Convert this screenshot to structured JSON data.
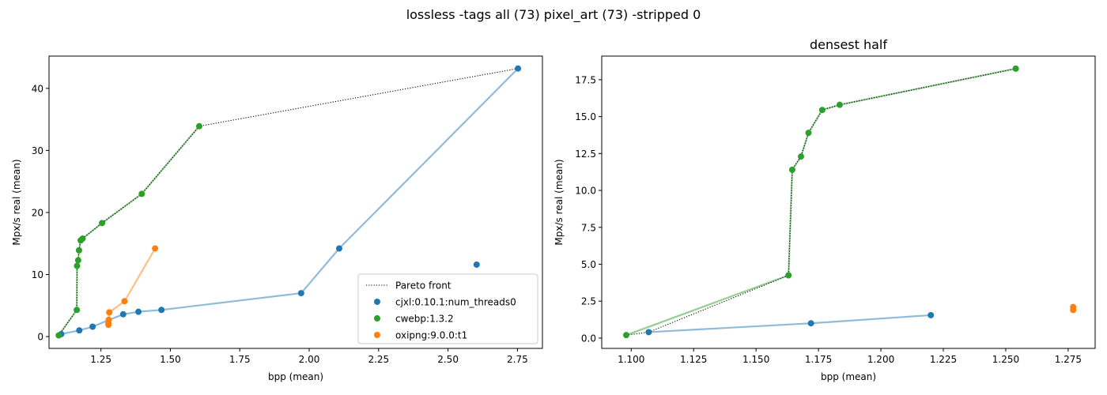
{
  "figure": {
    "suptitle": "lossless -tags all (73) pixel_art (73) -stripped 0"
  },
  "colors": {
    "cjxl": "#1f77b4",
    "cwebp": "#2ca02c",
    "oxipng": "#ff7f0e",
    "pareto": "#000000"
  },
  "chart_data": [
    {
      "type": "scatter",
      "title": "",
      "xlabel": "bpp (mean)",
      "ylabel": "Mpx/s real (mean)",
      "xlim": [
        1.063,
        2.84
      ],
      "ylim": [
        -1.9,
        45.2
      ],
      "xticks": [
        1.25,
        1.5,
        1.75,
        2.0,
        2.25,
        2.5,
        2.75
      ],
      "xtick_labels": [
        "1.25",
        "1.50",
        "1.75",
        "2.00",
        "2.25",
        "2.50",
        "2.75"
      ],
      "yticks": [
        0,
        10,
        20,
        30,
        40
      ],
      "ytick_labels": [
        "0",
        "10",
        "20",
        "30",
        "40"
      ],
      "legend": {
        "position": "lower-right",
        "entries": [
          {
            "label": "Pareto front",
            "kind": "line",
            "color_key": "pareto"
          },
          {
            "label": "cjxl:0.10.1:num_threads0",
            "kind": "dot",
            "color_key": "cjxl"
          },
          {
            "label": "cwebp:1.3.2",
            "kind": "dot",
            "color_key": "cwebp"
          },
          {
            "label": "oxipng:9.0.0:t1",
            "kind": "dot",
            "color_key": "oxipng"
          }
        ]
      },
      "series": [
        {
          "name": "cjxl:0.10.1:num_threads0",
          "color_key": "cjxl",
          "points": [
            [
              1.107,
              0.4
            ],
            [
              1.172,
              1.0
            ],
            [
              1.22,
              1.6
            ],
            [
              1.33,
              3.6
            ],
            [
              1.385,
              4.0
            ],
            [
              1.468,
              4.3
            ],
            [
              1.971,
              7.0
            ],
            [
              2.108,
              14.2
            ],
            [
              2.752,
              43.2
            ],
            [
              2.603,
              11.6
            ]
          ],
          "line": [
            [
              1.107,
              0.4
            ],
            [
              1.172,
              1.0
            ],
            [
              1.22,
              1.6
            ],
            [
              1.33,
              3.6
            ],
            [
              1.385,
              4.0
            ],
            [
              1.468,
              4.3
            ],
            [
              1.971,
              7.0
            ],
            [
              2.108,
              14.2
            ],
            [
              2.752,
              43.2
            ]
          ]
        },
        {
          "name": "cwebp:1.3.2",
          "color_key": "cwebp",
          "points": [
            [
              1.098,
              0.2
            ],
            [
              1.163,
              4.3
            ],
            [
              1.164,
              11.4
            ],
            [
              1.168,
              12.3
            ],
            [
              1.171,
              13.9
            ],
            [
              1.177,
              15.5
            ],
            [
              1.184,
              15.8
            ],
            [
              1.254,
              18.3
            ],
            [
              1.397,
              23.0
            ],
            [
              1.604,
              33.9
            ]
          ],
          "line": [
            [
              1.098,
              0.2
            ],
            [
              1.163,
              4.3
            ],
            [
              1.164,
              11.4
            ],
            [
              1.168,
              12.3
            ],
            [
              1.171,
              13.9
            ],
            [
              1.177,
              15.5
            ],
            [
              1.184,
              15.8
            ],
            [
              1.254,
              18.3
            ],
            [
              1.397,
              23.0
            ],
            [
              1.604,
              33.9
            ]
          ]
        },
        {
          "name": "oxipng:9.0.0:t1",
          "color_key": "oxipng",
          "points": [
            [
              1.277,
              1.9
            ],
            [
              1.277,
              2.1
            ],
            [
              1.278,
              2.7
            ],
            [
              1.28,
              3.9
            ],
            [
              1.335,
              5.7
            ],
            [
              1.445,
              14.2
            ]
          ],
          "line": [
            [
              1.277,
              1.9
            ],
            [
              1.278,
              2.7
            ],
            [
              1.28,
              3.9
            ],
            [
              1.335,
              5.7
            ],
            [
              1.445,
              14.2
            ]
          ]
        }
      ],
      "pareto": [
        [
          1.098,
          0.2
        ],
        [
          1.163,
          4.3
        ],
        [
          1.164,
          11.4
        ],
        [
          1.168,
          12.3
        ],
        [
          1.171,
          13.9
        ],
        [
          1.177,
          15.5
        ],
        [
          1.184,
          15.8
        ],
        [
          1.254,
          18.3
        ],
        [
          1.397,
          23.0
        ],
        [
          1.604,
          33.9
        ],
        [
          2.752,
          43.2
        ]
      ]
    },
    {
      "type": "scatter",
      "title": "densest half",
      "xlabel": "bpp (mean)",
      "ylabel": "Mpx/s real (mean)",
      "xlim": [
        1.0882,
        1.2858
      ],
      "ylim": [
        -0.7,
        19.1
      ],
      "xticks": [
        1.1,
        1.125,
        1.15,
        1.175,
        1.2,
        1.225,
        1.25,
        1.275
      ],
      "xtick_labels": [
        "1.100",
        "1.125",
        "1.150",
        "1.175",
        "1.200",
        "1.225",
        "1.250",
        "1.275"
      ],
      "yticks": [
        0,
        2.5,
        5,
        7.5,
        10,
        12.5,
        15,
        17.5
      ],
      "ytick_labels": [
        "0.0",
        "2.5",
        "5.0",
        "7.5",
        "10.0",
        "12.5",
        "15.0",
        "17.5"
      ],
      "series": [
        {
          "name": "cjxl:0.10.1:num_threads0",
          "color_key": "cjxl",
          "points": [
            [
              1.107,
              0.4
            ],
            [
              1.172,
              1.0
            ],
            [
              1.22,
              1.55
            ]
          ],
          "line": [
            [
              1.107,
              0.4
            ],
            [
              1.172,
              1.0
            ],
            [
              1.22,
              1.55
            ]
          ]
        },
        {
          "name": "cwebp:1.3.2",
          "color_key": "cwebp",
          "points": [
            [
              1.098,
              0.2
            ],
            [
              1.163,
              4.25
            ],
            [
              1.1645,
              11.4
            ],
            [
              1.168,
              12.3
            ],
            [
              1.171,
              13.9
            ],
            [
              1.1765,
              15.45
            ],
            [
              1.1835,
              15.8
            ],
            [
              1.254,
              18.25
            ]
          ],
          "line": [
            [
              1.098,
              0.2
            ],
            [
              1.163,
              4.25
            ],
            [
              1.1645,
              11.4
            ],
            [
              1.168,
              12.3
            ],
            [
              1.171,
              13.9
            ],
            [
              1.1765,
              15.45
            ],
            [
              1.1835,
              15.8
            ],
            [
              1.254,
              18.25
            ]
          ]
        },
        {
          "name": "oxipng:9.0.0:t1",
          "color_key": "oxipng",
          "points": [
            [
              1.277,
              1.9
            ],
            [
              1.277,
              2.1
            ]
          ],
          "line": []
        }
      ],
      "pareto": [
        [
          1.098,
          0.2
        ],
        [
          1.107,
          0.4
        ],
        [
          1.163,
          4.25
        ],
        [
          1.1645,
          11.4
        ],
        [
          1.168,
          12.3
        ],
        [
          1.171,
          13.9
        ],
        [
          1.1765,
          15.45
        ],
        [
          1.1835,
          15.8
        ],
        [
          1.254,
          18.25
        ]
      ]
    }
  ]
}
